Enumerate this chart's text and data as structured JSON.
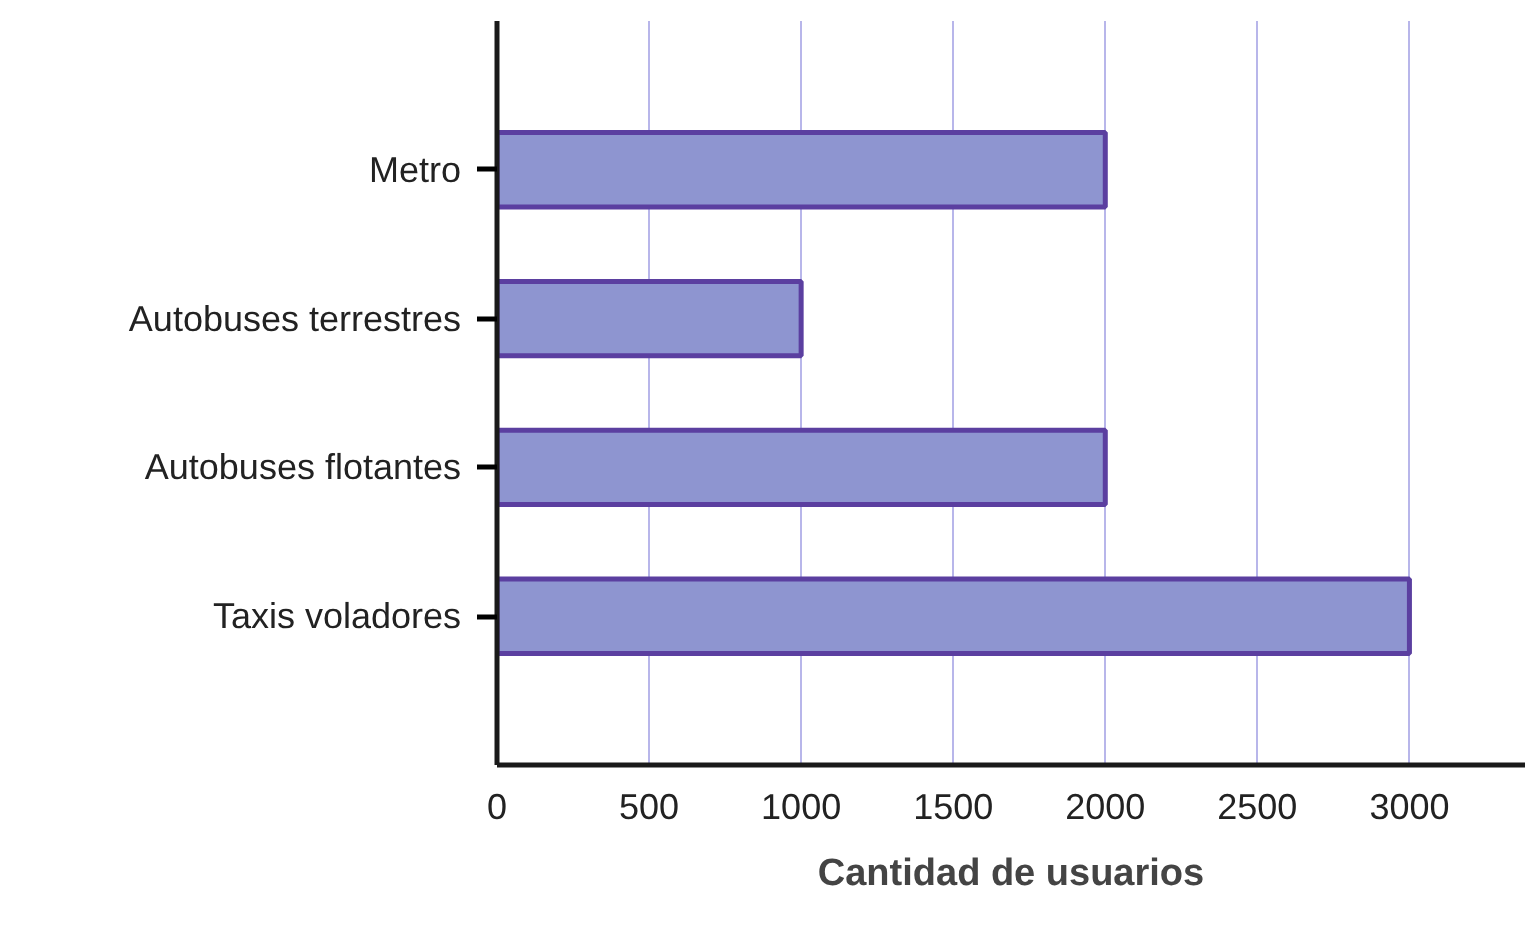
{
  "chart_data": {
    "type": "bar",
    "orientation": "horizontal",
    "xlabel": "Cantidad de usuarios",
    "categories": [
      "Metro",
      "Autobuses terrestres",
      "Autobuses flotantes",
      "Taxis voladores"
    ],
    "values": [
      2000,
      1000,
      2000,
      3000
    ],
    "color": "#8e95d0",
    "xlim": [
      0,
      3380
    ],
    "xticks": [
      0,
      500,
      1000,
      1500,
      2000,
      2500,
      3000
    ],
    "grid": "x"
  }
}
